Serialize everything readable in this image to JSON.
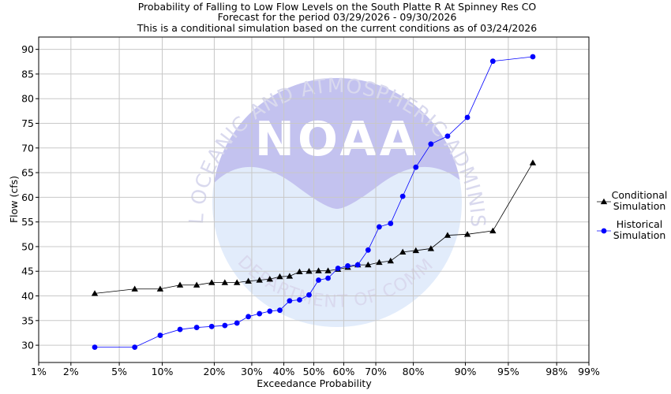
{
  "chart_data": {
    "type": "scatter",
    "title_lines": [
      "Probability of Falling to Low Flow Levels on the South Platte R At Spinney Res CO",
      "Forecast for the period 03/29/2026 - 09/30/2026",
      "This is a conditional simulation based on the current conditions as of 03/24/2026"
    ],
    "xlabel": "Exceedance Probability",
    "ylabel": "Flow (cfs)",
    "x_scale": "normal-probability",
    "xlim": [
      1,
      99
    ],
    "ylim": [
      26.5,
      92.5
    ],
    "x_ticks": [
      1,
      2,
      5,
      10,
      20,
      30,
      40,
      50,
      60,
      70,
      80,
      90,
      95,
      98,
      99
    ],
    "x_tick_labels": [
      "1%",
      "2%",
      "5%",
      "10%",
      "20%",
      "30%",
      "40%",
      "50%",
      "60%",
      "70%",
      "80%",
      "90%",
      "95%",
      "98%",
      "99%"
    ],
    "y_ticks": [
      30,
      35,
      40,
      45,
      50,
      55,
      60,
      65,
      70,
      75,
      80,
      85,
      90
    ],
    "grid": true,
    "legend_position": "right",
    "series": [
      {
        "name": "Conditional Simulation",
        "color": "#000000",
        "marker": "triangle",
        "x": [
          3.2,
          6.5,
          9.7,
          12.9,
          16.1,
          19.4,
          22.6,
          25.8,
          29.0,
          32.3,
          35.5,
          38.7,
          41.9,
          45.2,
          48.4,
          51.6,
          54.8,
          58.1,
          61.3,
          64.5,
          67.7,
          71.0,
          74.2,
          77.4,
          80.6,
          83.9,
          87.1,
          90.3,
          93.5,
          96.8
        ],
        "y": [
          40.5,
          41.4,
          41.4,
          42.2,
          42.2,
          42.7,
          42.7,
          42.7,
          43.0,
          43.2,
          43.4,
          43.9,
          44.0,
          44.9,
          45.0,
          45.1,
          45.1,
          45.4,
          45.8,
          46.3,
          46.3,
          46.8,
          47.1,
          48.9,
          49.2,
          49.6,
          52.3,
          52.5,
          53.2,
          67.0
        ]
      },
      {
        "name": "Historical Simulation",
        "color": "#0000ff",
        "marker": "circle",
        "x": [
          3.2,
          6.5,
          9.7,
          12.9,
          16.1,
          19.4,
          22.6,
          25.8,
          29.0,
          32.3,
          35.5,
          38.7,
          41.9,
          45.2,
          48.4,
          51.6,
          54.8,
          58.1,
          61.3,
          64.5,
          67.7,
          71.0,
          74.2,
          77.4,
          80.6,
          83.9,
          87.1,
          90.3,
          93.5,
          96.8
        ],
        "y": [
          29.6,
          29.6,
          32.0,
          33.2,
          33.6,
          33.8,
          34.0,
          34.5,
          35.8,
          36.4,
          36.9,
          37.1,
          39.0,
          39.2,
          40.2,
          43.2,
          43.6,
          45.6,
          46.1,
          46.3,
          49.3,
          54.0,
          54.7,
          60.2,
          66.1,
          70.8,
          72.4,
          76.2,
          87.6,
          88.5
        ]
      }
    ],
    "legend_entries": [
      {
        "line1": "Conditional",
        "line2": "Simulation"
      },
      {
        "line1": "Historical",
        "line2": "Simulation"
      }
    ],
    "watermark": {
      "logo_text": "NOAA",
      "ring_text": "NATIONAL OCEANIC AND ATMOSPHERIC ADMINISTRATION",
      "bottom_text": "U.S. DEPARTMENT OF COMMERCE"
    }
  }
}
